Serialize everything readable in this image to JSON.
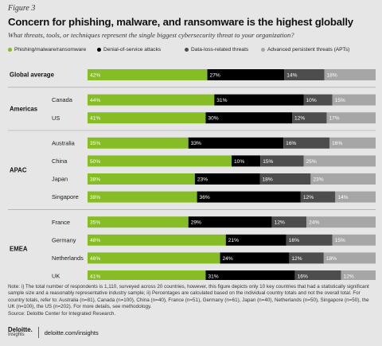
{
  "figure_label": "Figure 3",
  "title": "Concern for phishing, malware, and ransomware is the highest globally",
  "subtitle": "What threats, tools, or techniques represent the single biggest cybersecurity threat to your organization?",
  "colors": {
    "phishing": "#86bc25",
    "dos": "#000000",
    "dataloss": "#4d4d4d",
    "apt": "#a6a6a6",
    "row_bg": "#ffffff"
  },
  "chart_data": {
    "type": "bar",
    "stacked": true,
    "orientation": "horizontal",
    "series_names": [
      "Phishing/malware/ransomware",
      "Denial-of-service attacks",
      "Data-loss-related threats",
      "Advanced persistent threats (APTs)"
    ],
    "groups": [
      {
        "name": "Global average",
        "rows": [
          {
            "label": "",
            "values": [
              42,
              27,
              14,
              18
            ]
          }
        ]
      },
      {
        "name": "Americas",
        "rows": [
          {
            "label": "Canada",
            "values": [
              44,
              31,
              10,
              15
            ]
          },
          {
            "label": "US",
            "values": [
              41,
              30,
              12,
              17
            ]
          }
        ]
      },
      {
        "name": "APAC",
        "rows": [
          {
            "label": "Australia",
            "values": [
              35,
              33,
              16,
              16
            ]
          },
          {
            "label": "China",
            "values": [
              50,
              10,
              15,
              25
            ]
          },
          {
            "label": "Japan",
            "values": [
              38,
              23,
              18,
              23
            ]
          },
          {
            "label": "Singapore",
            "values": [
              38,
              36,
              12,
              14
            ]
          }
        ]
      },
      {
        "name": "EMEA",
        "rows": [
          {
            "label": "France",
            "values": [
              35,
              29,
              12,
              24
            ]
          },
          {
            "label": "Germany",
            "values": [
              48,
              21,
              16,
              15
            ]
          },
          {
            "label": "Netherlands",
            "values": [
              46,
              24,
              12,
              18
            ]
          },
          {
            "label": "UK",
            "values": [
              41,
              31,
              16,
              12
            ]
          }
        ]
      }
    ],
    "value_suffix": "%"
  },
  "note": "Note: i) The total number of respondents is 1,110, surveyed across 20 countries, however, this figure depicts only 10 key countries that had a statistically significant sample size and a reasonably representative industry sample; ii) Percentages are calculated based on the individual country totals and not the overall total. For country totals, refer to: Australia (n=81), Canada (n=100), China (n=40), France (n=51), Germany (n=61), Japan (n=40), Netherlands (n=50), Singapore (n=50), the UK (n=100), the US (n=202). For more details, see methodology.",
  "source": "Source: Deloitte Center for Integrated Research.",
  "footer": {
    "brand": "Deloitte.",
    "brand_sub": "Insights",
    "url": "deloitte.com/insights"
  }
}
